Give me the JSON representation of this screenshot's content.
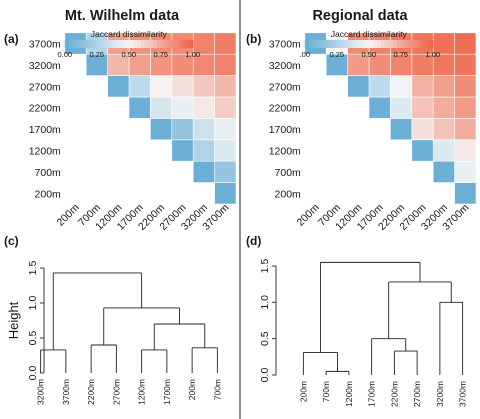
{
  "panels": {
    "left_title": "Mt. Wilhelm data",
    "right_title": "Regional data",
    "labels": [
      "(a)",
      "(b)",
      "(c)",
      "(d)"
    ]
  },
  "colors": {
    "low": "#6bafd6",
    "mid": "#f7f7f7",
    "high": "#ef6548",
    "line": "#222222"
  },
  "chart_data": [
    {
      "type": "heatmap",
      "panel": "(a)",
      "title": "Mt. Wilhelm data",
      "legend_title": "Jaccard dissimilarity",
      "legend_ticks": [
        "0.00",
        "0.25",
        "0.50",
        "0.75",
        "1.00"
      ],
      "legend_placement": "top-left",
      "categories": [
        "200m",
        "700m",
        "1200m",
        "1700m",
        "2200m",
        "2700m",
        "3200m",
        "3700m"
      ],
      "value_range": [
        0,
        1
      ],
      "matrix": [
        [
          0.0
        ],
        [
          0.15,
          0.0
        ],
        [
          0.4,
          0.25,
          0.0
        ],
        [
          0.45,
          0.35,
          0.15,
          0.0
        ],
        [
          0.65,
          0.55,
          0.45,
          0.38,
          0.0
        ],
        [
          0.72,
          0.66,
          0.58,
          0.52,
          0.3,
          0.0
        ],
        [
          0.9,
          0.88,
          0.86,
          0.84,
          0.8,
          0.72,
          0.0
        ],
        [
          0.92,
          0.9,
          0.88,
          0.87,
          0.85,
          0.8,
          0.25,
          0.0
        ]
      ]
    },
    {
      "type": "heatmap",
      "panel": "(b)",
      "title": "Regional data",
      "legend_title": "Jaccard dissimilarity",
      "legend_ticks": [
        "0.00",
        "0.25",
        "0.50",
        "0.75",
        "1.00"
      ],
      "legend_tick_display": [
        ".00",
        "0.25",
        "0.50",
        "0.75",
        "1.00"
      ],
      "legend_placement": "top-left",
      "categories": [
        "200m",
        "700m",
        "1200m",
        "1700m",
        "2200m",
        "2700m",
        "3200m",
        "3700m"
      ],
      "value_range": [
        0,
        1
      ],
      "matrix": [
        [
          0.0
        ],
        [
          0.45,
          0.0
        ],
        [
          0.55,
          0.4,
          0.0
        ],
        [
          0.75,
          0.68,
          0.58,
          0.0
        ],
        [
          0.82,
          0.76,
          0.68,
          0.4,
          0.0
        ],
        [
          0.86,
          0.8,
          0.74,
          0.48,
          0.3,
          0.0
        ],
        [
          0.95,
          0.94,
          0.92,
          0.9,
          0.86,
          0.82,
          0.0
        ],
        [
          0.97,
          0.96,
          0.95,
          0.93,
          0.9,
          0.88,
          0.5,
          0.0
        ]
      ]
    },
    {
      "type": "dendrogram",
      "panel": "(c)",
      "ylabel": "Height",
      "ylim": [
        0,
        1.5
      ],
      "yticks": [
        "0.0",
        "0.5",
        "1.0",
        "1.5"
      ],
      "leaves": [
        "3200m",
        "3700m",
        "2200m",
        "2700m",
        "1200m",
        "1700m",
        "200m",
        "700m"
      ],
      "merges": [
        {
          "a": 0,
          "b": 1,
          "height": 0.33
        },
        {
          "a": 2,
          "b": 3,
          "height": 0.4
        },
        {
          "a": 4,
          "b": 5,
          "height": 0.33
        },
        {
          "a": 6,
          "b": 7,
          "height": 0.36
        },
        {
          "a": 10,
          "b": 11,
          "height": 0.7
        },
        {
          "a": 9,
          "b": 12,
          "height": 0.93
        },
        {
          "a": 8,
          "b": 13,
          "height": 1.43
        }
      ]
    },
    {
      "type": "dendrogram",
      "panel": "(d)",
      "ylabel": "",
      "ylim": [
        0,
        1.5
      ],
      "yticks": [
        "0.0",
        "0.5",
        "1.0",
        "1.5"
      ],
      "leaves": [
        "200m",
        "700m",
        "1200m",
        "1700m",
        "2200m",
        "2700m",
        "3200m",
        "3700m"
      ],
      "merges": [
        {
          "a": 1,
          "b": 2,
          "height": 0.05
        },
        {
          "a": 0,
          "b": 8,
          "height": 0.31
        },
        {
          "a": 4,
          "b": 5,
          "height": 0.33
        },
        {
          "a": 3,
          "b": 10,
          "height": 0.5
        },
        {
          "a": 6,
          "b": 7,
          "height": 1.0
        },
        {
          "a": 11,
          "b": 12,
          "height": 1.28
        },
        {
          "a": 9,
          "b": 13,
          "height": 1.55
        }
      ]
    }
  ]
}
